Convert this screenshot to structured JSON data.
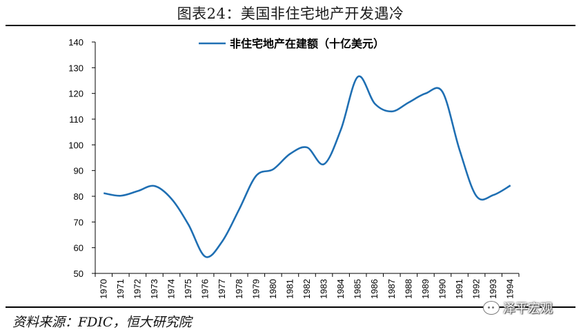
{
  "title": "图表24：美国非住宅地产开发遇冷",
  "source": "资料来源：FDIC，恒大研究院",
  "watermark": "泽平宏观",
  "colors": {
    "line": "#1f6fb3",
    "rule": "#000000"
  },
  "chart_data": {
    "type": "line",
    "title": "图表24：美国非住宅地产开发遇冷",
    "xlabel": "",
    "ylabel": "",
    "ylim": [
      50,
      140
    ],
    "yticks": [
      50,
      60,
      70,
      80,
      90,
      100,
      110,
      120,
      130,
      140
    ],
    "categories": [
      "1970",
      "1971",
      "1972",
      "1973",
      "1974",
      "1975",
      "1976",
      "1977",
      "1978",
      "1979",
      "1980",
      "1981",
      "1982",
      "1983",
      "1984",
      "1985",
      "1986",
      "1987",
      "1988",
      "1989",
      "1990",
      "1991",
      "1992",
      "1993",
      "1994"
    ],
    "legend_position": "top-center",
    "series": [
      {
        "name": "非住宅地产在建额（十亿美元）",
        "values": [
          81.2,
          80.2,
          82.0,
          84.0,
          79.0,
          69.0,
          56.5,
          62.5,
          75.0,
          88.0,
          90.5,
          96.5,
          99.0,
          92.5,
          106.0,
          126.5,
          116.0,
          113.0,
          116.5,
          120.0,
          120.5,
          98.0,
          80.0,
          80.5,
          84.2
        ]
      }
    ]
  }
}
